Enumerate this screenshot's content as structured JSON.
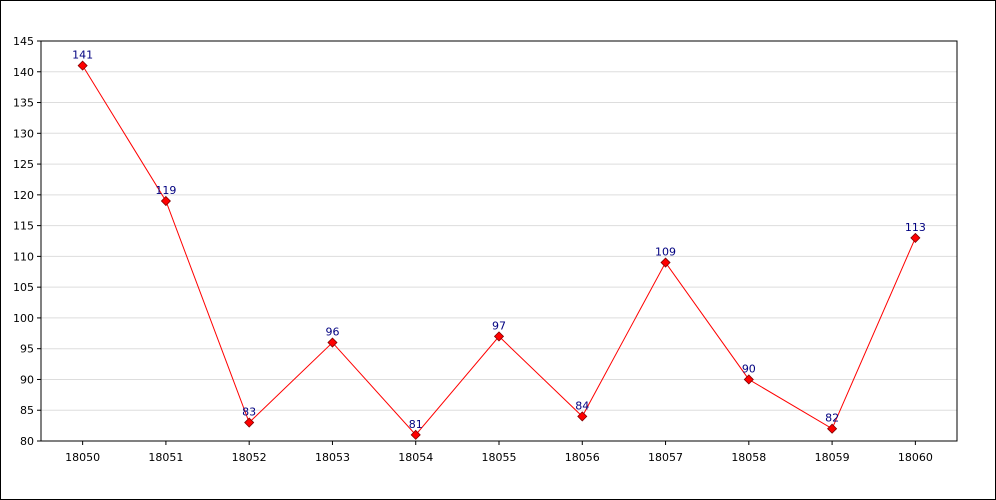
{
  "chart_data": {
    "type": "line",
    "categories": [
      "18050",
      "18051",
      "18052",
      "18053",
      "18054",
      "18055",
      "18056",
      "18057",
      "18058",
      "18059",
      "18060"
    ],
    "series": [
      {
        "values": [
          141,
          119,
          83,
          96,
          81,
          97,
          84,
          109,
          90,
          82,
          113
        ]
      }
    ],
    "data_labels": [
      "141",
      "119",
      "83",
      "96",
      "81",
      "97",
      "84",
      "109",
      "90",
      "82",
      "113"
    ],
    "ylim": [
      80,
      145
    ],
    "yticks": [
      80,
      85,
      90,
      95,
      100,
      105,
      110,
      115,
      120,
      125,
      130,
      135,
      140,
      145
    ],
    "grid": "horizontal",
    "line_color": "#ff0000",
    "marker_color": "#ff0000",
    "label_color": "#000080"
  }
}
